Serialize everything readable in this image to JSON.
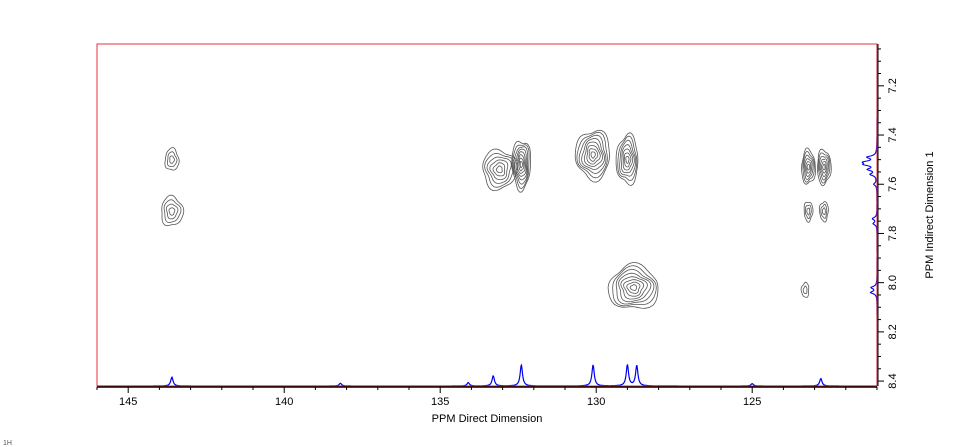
{
  "corner_label": "1H",
  "chart_data": {
    "type": "contour",
    "xlabel": "PPM Direct Dimension",
    "ylabel": "PPM Indirect Dimension 1",
    "xlim": [
      146.0,
      121.0
    ],
    "ylim": [
      7.03,
      8.42
    ],
    "x_ticks": [
      "145",
      "140",
      "135",
      "130",
      "125"
    ],
    "x_tick_values": [
      145,
      140,
      135,
      130,
      125
    ],
    "y_ticks": [
      "7.2",
      "7.4",
      "7.6",
      "7.8",
      "8.0",
      "8.2",
      "8.4"
    ],
    "y_tick_values": [
      7.2,
      7.4,
      7.6,
      7.8,
      8.0,
      8.2,
      8.4
    ],
    "colors": {
      "frame": "#e8313a",
      "contour": "#555555",
      "projection": "#0000ee",
      "axis": "#000000"
    },
    "direct_projection_peaks": [
      {
        "x": 143.6,
        "intensity": 0.26
      },
      {
        "x": 138.2,
        "intensity": 0.08
      },
      {
        "x": 134.1,
        "intensity": 0.1
      },
      {
        "x": 133.3,
        "intensity": 0.3
      },
      {
        "x": 132.4,
        "intensity": 0.62
      },
      {
        "x": 130.1,
        "intensity": 0.62
      },
      {
        "x": 129.0,
        "intensity": 0.62
      },
      {
        "x": 128.7,
        "intensity": 0.6
      },
      {
        "x": 125.0,
        "intensity": 0.07
      },
      {
        "x": 122.8,
        "intensity": 0.22
      }
    ],
    "indirect_projection_peaks": [
      {
        "y": 7.49,
        "intensity": 0.45
      },
      {
        "y": 7.51,
        "intensity": 0.55
      },
      {
        "y": 7.52,
        "intensity": 0.5
      },
      {
        "y": 7.54,
        "intensity": 0.4
      },
      {
        "y": 7.56,
        "intensity": 0.3
      },
      {
        "y": 7.6,
        "intensity": 0.15
      },
      {
        "y": 7.74,
        "intensity": 0.22
      },
      {
        "y": 7.76,
        "intensity": 0.18
      },
      {
        "y": 8.02,
        "intensity": 0.28
      },
      {
        "y": 8.04,
        "intensity": 0.3
      }
    ],
    "cross_peaks": [
      {
        "x": 143.6,
        "y": 7.5,
        "intensity": 0.35,
        "wx": 0.22,
        "wy": 0.045
      },
      {
        "x": 143.6,
        "y": 7.71,
        "intensity": 0.55,
        "wx": 0.35,
        "wy": 0.06
      },
      {
        "x": 133.1,
        "y": 7.54,
        "intensity": 0.8,
        "wx": 0.55,
        "wy": 0.08
      },
      {
        "x": 132.4,
        "y": 7.52,
        "intensity": 0.95,
        "wx": 0.3,
        "wy": 0.1
      },
      {
        "x": 130.1,
        "y": 7.48,
        "intensity": 0.95,
        "wx": 0.55,
        "wy": 0.1
      },
      {
        "x": 129.0,
        "y": 7.5,
        "intensity": 0.9,
        "wx": 0.35,
        "wy": 0.1
      },
      {
        "x": 128.8,
        "y": 8.02,
        "intensity": 1.0,
        "wx": 0.8,
        "wy": 0.09
      },
      {
        "x": 123.2,
        "y": 7.53,
        "intensity": 0.75,
        "wx": 0.22,
        "wy": 0.07
      },
      {
        "x": 122.7,
        "y": 7.53,
        "intensity": 0.75,
        "wx": 0.22,
        "wy": 0.07
      },
      {
        "x": 123.2,
        "y": 7.71,
        "intensity": 0.35,
        "wx": 0.14,
        "wy": 0.04
      },
      {
        "x": 122.7,
        "y": 7.71,
        "intensity": 0.35,
        "wx": 0.14,
        "wy": 0.04
      },
      {
        "x": 123.3,
        "y": 8.03,
        "intensity": 0.25,
        "wx": 0.12,
        "wy": 0.03
      }
    ]
  }
}
